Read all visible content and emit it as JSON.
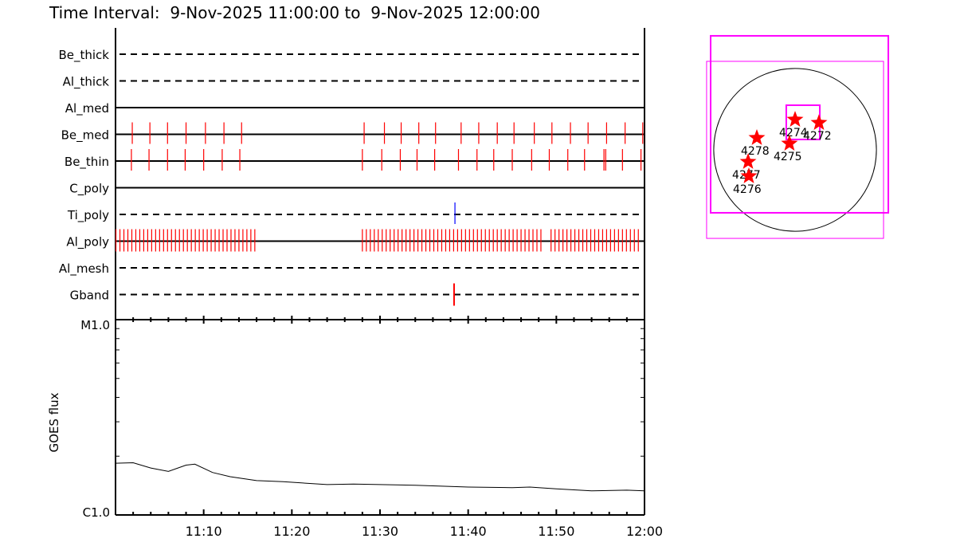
{
  "title": "Time Interval:  9-Nov-2025 11:00:00 to  9-Nov-2025 12:00:00",
  "colors": {
    "marks": "#ff0000",
    "ti_poly_mark": "#0000ff",
    "fov_box": "#ff00ff",
    "axes": "#000000"
  },
  "chart_data": [
    {
      "type": "timeline",
      "x_range": [
        "11:00:00",
        "12:00:00"
      ],
      "x_ticks": [
        "11:10",
        "11:20",
        "11:30",
        "11:40",
        "11:50",
        "12:00"
      ],
      "rows": [
        {
          "name": "Be_thick",
          "line": "dashed",
          "marks": []
        },
        {
          "name": "Al_thick",
          "line": "dashed",
          "marks": []
        },
        {
          "name": "Al_med",
          "line": "solid",
          "marks": []
        },
        {
          "name": "Be_med",
          "line": "solid",
          "marks": [
            "11:01:54",
            "11:03:54",
            "11:05:54",
            "11:08:00",
            "11:10:12",
            "11:12:18",
            "11:14:18",
            "11:28:12",
            "11:30:30",
            "11:32:24",
            "11:34:24",
            "11:36:18",
            "11:39:12",
            "11:41:12",
            "11:43:18",
            "11:45:12",
            "11:47:30",
            "11:49:30",
            "11:51:36",
            "11:53:36",
            "11:55:42",
            "11:57:48",
            "11:59:48"
          ]
        },
        {
          "name": "Be_thin",
          "line": "solid",
          "marks": [
            "11:01:48",
            "11:03:48",
            "11:05:54",
            "11:07:54",
            "11:10:00",
            "11:12:06",
            "11:14:06",
            "11:28:00",
            "11:30:12",
            "11:32:18",
            "11:34:12",
            "11:36:12",
            "11:38:54",
            "11:41:00",
            "11:42:54",
            "11:45:00",
            "11:47:12",
            "11:49:12",
            "11:51:18",
            "11:53:12",
            "11:55:24",
            "11:55:36",
            "11:57:30",
            "11:59:36"
          ]
        },
        {
          "name": "C_poly",
          "line": "solid",
          "marks": []
        },
        {
          "name": "Ti_poly",
          "line": "dashed",
          "marks": [
            "11:38:30"
          ],
          "mark_color": "#0000ff"
        },
        {
          "name": "Al_poly",
          "line": "solid",
          "runs": [
            {
              "start": "11:00:03",
              "end": "11:15:48",
              "cadence_s": 27
            },
            {
              "start": "11:28:00",
              "end": "11:48:30",
              "cadence_s": 27
            },
            {
              "start": "11:49:24",
              "end": "11:59:42",
              "cadence_s": 27
            }
          ]
        },
        {
          "name": "Al_mesh",
          "line": "dashed",
          "marks": []
        },
        {
          "name": "Gband",
          "line": "dashed",
          "marks": [
            "11:38:24"
          ],
          "tall": true
        }
      ]
    },
    {
      "type": "line",
      "ylabel": "GOES flux",
      "y_scale": "log",
      "ylim": [
        1e-06,
        1e-05
      ],
      "y_tick_labels": [
        "C1.0",
        "M1.0"
      ],
      "x_tick_labels": [
        "11:10",
        "11:20",
        "11:30",
        "11:40",
        "11:50",
        "12:00"
      ],
      "x_range": [
        "11:00:00",
        "12:00:00"
      ],
      "points": [
        [
          "11:00:00",
          1.84e-06
        ],
        [
          "11:02:00",
          1.85e-06
        ],
        [
          "11:04:00",
          1.74e-06
        ],
        [
          "11:06:00",
          1.67e-06
        ],
        [
          "11:08:00",
          1.8e-06
        ],
        [
          "11:09:00",
          1.82e-06
        ],
        [
          "11:11:00",
          1.65e-06
        ],
        [
          "11:13:00",
          1.57e-06
        ],
        [
          "11:16:00",
          1.5e-06
        ],
        [
          "11:19:00",
          1.48e-06
        ],
        [
          "11:24:00",
          1.43e-06
        ],
        [
          "11:27:00",
          1.44e-06
        ],
        [
          "11:30:00",
          1.43e-06
        ],
        [
          "11:34:00",
          1.42e-06
        ],
        [
          "11:40:00",
          1.39e-06
        ],
        [
          "11:45:00",
          1.38e-06
        ],
        [
          "11:47:00",
          1.39e-06
        ],
        [
          "11:50:00",
          1.36e-06
        ],
        [
          "11:54:00",
          1.33e-06
        ],
        [
          "11:58:00",
          1.34e-06
        ],
        [
          "12:00:00",
          1.33e-06
        ]
      ]
    },
    {
      "type": "scatter",
      "solar_radius_arcsec": 970,
      "fov_boxes": [
        {
          "x": [
            -1007,
            1112
          ],
          "y": [
            -750,
            1359
          ],
          "weight": "thick"
        },
        {
          "x": [
            -1055,
            1055
          ],
          "y": [
            -1055,
            1055
          ],
          "weight": "thin"
        },
        {
          "x": [
            -105,
            295
          ],
          "y": [
            124,
            532
          ],
          "weight": "thick"
        }
      ],
      "active_regions": [
        {
          "label": "4274",
          "x": 0,
          "y": 370
        },
        {
          "label": "4272",
          "x": 285,
          "y": 332
        },
        {
          "label": "4278",
          "x": -456,
          "y": 152
        },
        {
          "label": "4275",
          "x": -67,
          "y": 85
        },
        {
          "label": "4277",
          "x": -560,
          "y": -133
        },
        {
          "label": "4276",
          "x": -551,
          "y": -304
        }
      ]
    }
  ]
}
